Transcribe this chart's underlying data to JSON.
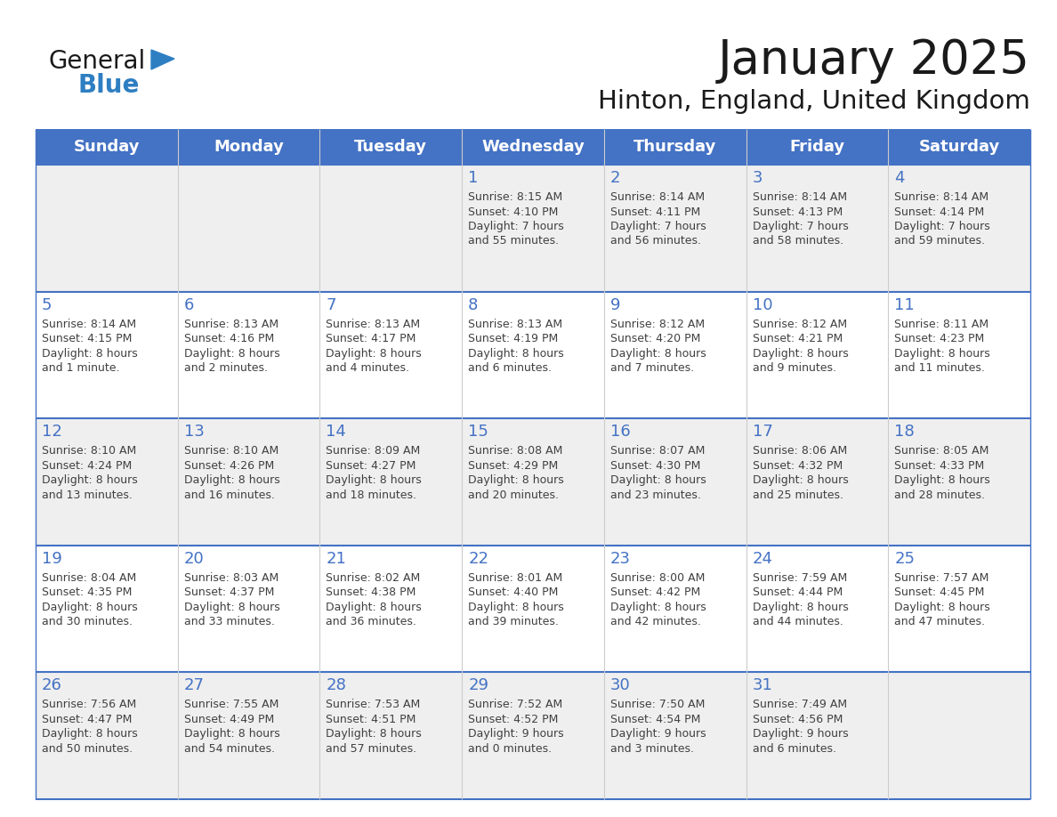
{
  "title": "January 2025",
  "subtitle": "Hinton, England, United Kingdom",
  "days_of_week": [
    "Sunday",
    "Monday",
    "Tuesday",
    "Wednesday",
    "Thursday",
    "Friday",
    "Saturday"
  ],
  "header_bg": "#4472C4",
  "header_text": "#FFFFFF",
  "row_odd_bg": "#EFEFEF",
  "row_even_bg": "#FFFFFF",
  "border_color": "#4472C4",
  "day_number_color": "#4472C4",
  "cell_text_color": "#404040",
  "title_color": "#1a1a1a",
  "calendar_data": [
    [
      {
        "day": null
      },
      {
        "day": null
      },
      {
        "day": null
      },
      {
        "day": 1,
        "sunrise": "8:15 AM",
        "sunset": "4:10 PM",
        "daylight_h": "7 hours",
        "daylight_m": "and 55 minutes."
      },
      {
        "day": 2,
        "sunrise": "8:14 AM",
        "sunset": "4:11 PM",
        "daylight_h": "7 hours",
        "daylight_m": "and 56 minutes."
      },
      {
        "day": 3,
        "sunrise": "8:14 AM",
        "sunset": "4:13 PM",
        "daylight_h": "7 hours",
        "daylight_m": "and 58 minutes."
      },
      {
        "day": 4,
        "sunrise": "8:14 AM",
        "sunset": "4:14 PM",
        "daylight_h": "7 hours",
        "daylight_m": "and 59 minutes."
      }
    ],
    [
      {
        "day": 5,
        "sunrise": "8:14 AM",
        "sunset": "4:15 PM",
        "daylight_h": "8 hours",
        "daylight_m": "and 1 minute."
      },
      {
        "day": 6,
        "sunrise": "8:13 AM",
        "sunset": "4:16 PM",
        "daylight_h": "8 hours",
        "daylight_m": "and 2 minutes."
      },
      {
        "day": 7,
        "sunrise": "8:13 AM",
        "sunset": "4:17 PM",
        "daylight_h": "8 hours",
        "daylight_m": "and 4 minutes."
      },
      {
        "day": 8,
        "sunrise": "8:13 AM",
        "sunset": "4:19 PM",
        "daylight_h": "8 hours",
        "daylight_m": "and 6 minutes."
      },
      {
        "day": 9,
        "sunrise": "8:12 AM",
        "sunset": "4:20 PM",
        "daylight_h": "8 hours",
        "daylight_m": "and 7 minutes."
      },
      {
        "day": 10,
        "sunrise": "8:12 AM",
        "sunset": "4:21 PM",
        "daylight_h": "8 hours",
        "daylight_m": "and 9 minutes."
      },
      {
        "day": 11,
        "sunrise": "8:11 AM",
        "sunset": "4:23 PM",
        "daylight_h": "8 hours",
        "daylight_m": "and 11 minutes."
      }
    ],
    [
      {
        "day": 12,
        "sunrise": "8:10 AM",
        "sunset": "4:24 PM",
        "daylight_h": "8 hours",
        "daylight_m": "and 13 minutes."
      },
      {
        "day": 13,
        "sunrise": "8:10 AM",
        "sunset": "4:26 PM",
        "daylight_h": "8 hours",
        "daylight_m": "and 16 minutes."
      },
      {
        "day": 14,
        "sunrise": "8:09 AM",
        "sunset": "4:27 PM",
        "daylight_h": "8 hours",
        "daylight_m": "and 18 minutes."
      },
      {
        "day": 15,
        "sunrise": "8:08 AM",
        "sunset": "4:29 PM",
        "daylight_h": "8 hours",
        "daylight_m": "and 20 minutes."
      },
      {
        "day": 16,
        "sunrise": "8:07 AM",
        "sunset": "4:30 PM",
        "daylight_h": "8 hours",
        "daylight_m": "and 23 minutes."
      },
      {
        "day": 17,
        "sunrise": "8:06 AM",
        "sunset": "4:32 PM",
        "daylight_h": "8 hours",
        "daylight_m": "and 25 minutes."
      },
      {
        "day": 18,
        "sunrise": "8:05 AM",
        "sunset": "4:33 PM",
        "daylight_h": "8 hours",
        "daylight_m": "and 28 minutes."
      }
    ],
    [
      {
        "day": 19,
        "sunrise": "8:04 AM",
        "sunset": "4:35 PM",
        "daylight_h": "8 hours",
        "daylight_m": "and 30 minutes."
      },
      {
        "day": 20,
        "sunrise": "8:03 AM",
        "sunset": "4:37 PM",
        "daylight_h": "8 hours",
        "daylight_m": "and 33 minutes."
      },
      {
        "day": 21,
        "sunrise": "8:02 AM",
        "sunset": "4:38 PM",
        "daylight_h": "8 hours",
        "daylight_m": "and 36 minutes."
      },
      {
        "day": 22,
        "sunrise": "8:01 AM",
        "sunset": "4:40 PM",
        "daylight_h": "8 hours",
        "daylight_m": "and 39 minutes."
      },
      {
        "day": 23,
        "sunrise": "8:00 AM",
        "sunset": "4:42 PM",
        "daylight_h": "8 hours",
        "daylight_m": "and 42 minutes."
      },
      {
        "day": 24,
        "sunrise": "7:59 AM",
        "sunset": "4:44 PM",
        "daylight_h": "8 hours",
        "daylight_m": "and 44 minutes."
      },
      {
        "day": 25,
        "sunrise": "7:57 AM",
        "sunset": "4:45 PM",
        "daylight_h": "8 hours",
        "daylight_m": "and 47 minutes."
      }
    ],
    [
      {
        "day": 26,
        "sunrise": "7:56 AM",
        "sunset": "4:47 PM",
        "daylight_h": "8 hours",
        "daylight_m": "and 50 minutes."
      },
      {
        "day": 27,
        "sunrise": "7:55 AM",
        "sunset": "4:49 PM",
        "daylight_h": "8 hours",
        "daylight_m": "and 54 minutes."
      },
      {
        "day": 28,
        "sunrise": "7:53 AM",
        "sunset": "4:51 PM",
        "daylight_h": "8 hours",
        "daylight_m": "and 57 minutes."
      },
      {
        "day": 29,
        "sunrise": "7:52 AM",
        "sunset": "4:52 PM",
        "daylight_h": "9 hours",
        "daylight_m": "and 0 minutes."
      },
      {
        "day": 30,
        "sunrise": "7:50 AM",
        "sunset": "4:54 PM",
        "daylight_h": "9 hours",
        "daylight_m": "and 3 minutes."
      },
      {
        "day": 31,
        "sunrise": "7:49 AM",
        "sunset": "4:56 PM",
        "daylight_h": "9 hours",
        "daylight_m": "and 6 minutes."
      },
      {
        "day": null
      }
    ]
  ],
  "logo_text1": "General",
  "logo_text2": "Blue",
  "logo_color1": "#1a1a1a",
  "logo_color2": "#2e7ec2",
  "logo_triangle_color": "#2e7ec2"
}
